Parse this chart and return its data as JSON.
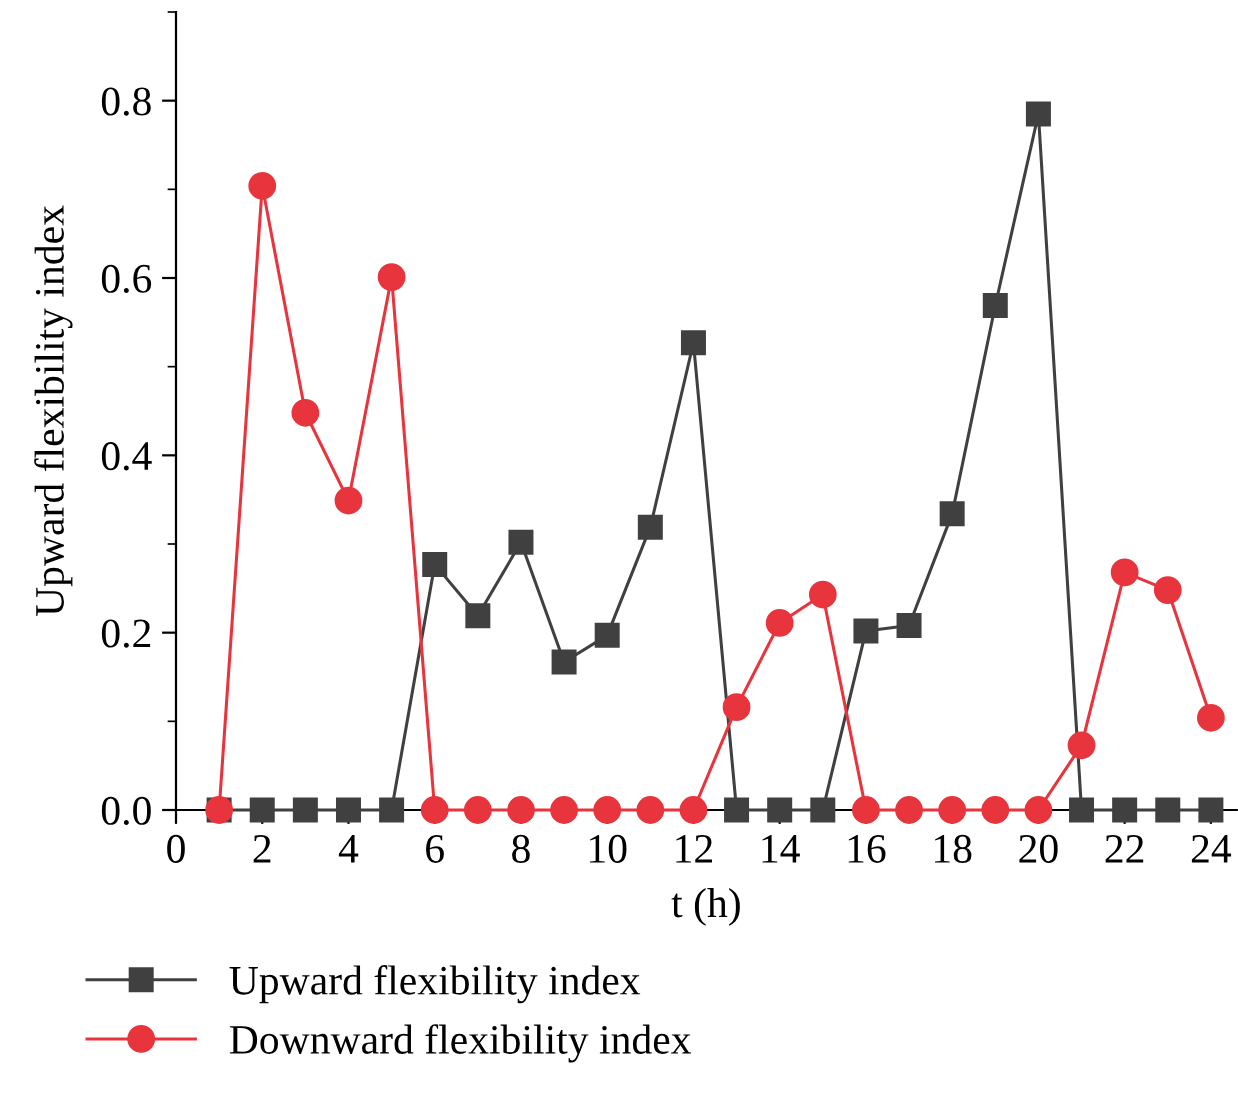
{
  "chart_data": {
    "type": "line",
    "xlabel": "t (h)",
    "ylabel": "Upward flexibility index",
    "x": [
      1,
      2,
      3,
      4,
      5,
      6,
      7,
      8,
      9,
      10,
      11,
      12,
      13,
      14,
      15,
      16,
      17,
      18,
      19,
      20,
      21,
      22,
      23,
      24
    ],
    "series": [
      {
        "name": "Upward flexibility index",
        "color": "#404040",
        "marker": "square",
        "values": [
          0,
          0,
          0,
          0,
          0,
          0.277,
          0.219,
          0.302,
          0.167,
          0.197,
          0.319,
          0.527,
          0,
          0,
          0,
          0.202,
          0.208,
          0.334,
          0.569,
          0.785,
          0,
          0,
          0,
          0
        ]
      },
      {
        "name": "Downward flexibility index",
        "color": "#e8343c",
        "marker": "circle",
        "values": [
          0,
          0.704,
          0.448,
          0.349,
          0.601,
          0,
          0,
          0,
          0,
          0,
          0,
          0,
          0.116,
          0.211,
          0.243,
          0,
          0,
          0,
          0,
          0,
          0.073,
          0.268,
          0.248,
          0.104
        ]
      }
    ],
    "xlim": [
      0,
      24.6
    ],
    "xticks": [
      0,
      2,
      4,
      6,
      8,
      10,
      12,
      14,
      16,
      18,
      20,
      22,
      24
    ],
    "ylim": [
      0,
      0.9
    ],
    "yticks": [
      {
        "value": 0,
        "label": "0.0"
      },
      {
        "value": 0.2,
        "label": "0.2"
      },
      {
        "value": 0.4,
        "label": "0.4"
      },
      {
        "value": 0.6,
        "label": "0.6"
      },
      {
        "value": 0.8,
        "label": "0.8"
      }
    ],
    "legend": "bottom left",
    "grid": false,
    "line_style": "solid"
  }
}
